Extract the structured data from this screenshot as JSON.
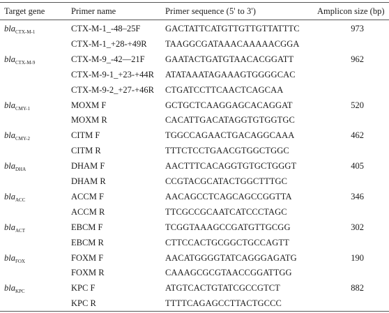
{
  "headers": {
    "target_gene": "Target gene",
    "primer_name": "Primer name",
    "primer_sequence": "Primer sequence (5' to 3')",
    "amplicon_size": "Amplicon size (bp)"
  },
  "rows": [
    {
      "gene_prefix": "bla",
      "gene_sub": "CTX-M-1",
      "primer_name": "CTX-M-1_-48–25F",
      "sequence": "GACTATTCATGTTGTTGTTATTTC",
      "amplicon": "973"
    },
    {
      "gene_prefix": "",
      "gene_sub": "",
      "primer_name": "CTX-M-1_+28-+49R",
      "sequence": "TAAGGCGATAAACAAAAACGGA",
      "amplicon": ""
    },
    {
      "gene_prefix": "bla",
      "gene_sub": "CTX-M-9",
      "primer_name": "CTX-M-9_-42—21F",
      "sequence": "GAATACTGATGTAACACGGATT",
      "amplicon": "962"
    },
    {
      "gene_prefix": "",
      "gene_sub": "",
      "primer_name": "CTX-M-9-1_+23-+44R",
      "sequence": "ATATAAATAGAAAGTGGGGCAC",
      "amplicon": ""
    },
    {
      "gene_prefix": "",
      "gene_sub": "",
      "primer_name": "CTX-M-9-2_+27-+46R",
      "sequence": "CTGATCCTTCAACTCAGCAA",
      "amplicon": ""
    },
    {
      "gene_prefix": "bla",
      "gene_sub": "CMY-1",
      "primer_name": "MOXM F",
      "sequence": "GCTGCTCAAGGAGCACAGGAT",
      "amplicon": "520"
    },
    {
      "gene_prefix": "",
      "gene_sub": "",
      "primer_name": "MOXM R",
      "sequence": "CACATTGACATAGGTGTGGTGC",
      "amplicon": ""
    },
    {
      "gene_prefix": "bla",
      "gene_sub": "CMY-2",
      "primer_name": "CITM F",
      "sequence": "TGGCCAGAACTGACAGGCAAA",
      "amplicon": "462"
    },
    {
      "gene_prefix": "",
      "gene_sub": "",
      "primer_name": "CITM R",
      "sequence": "TTTCTCCTGAACGTGGCTGGC",
      "amplicon": ""
    },
    {
      "gene_prefix": "bla",
      "gene_sub": "DHA",
      "primer_name": "DHAM F",
      "sequence": "AACTTTCACAGGTGTGCTGGGT",
      "amplicon": "405"
    },
    {
      "gene_prefix": "",
      "gene_sub": "",
      "primer_name": "DHAM R",
      "sequence": "CCGTACGCATACTGGCTTTGC",
      "amplicon": ""
    },
    {
      "gene_prefix": "bla",
      "gene_sub": "ACC",
      "primer_name": "ACCM F",
      "sequence": "AACAGCCTCAGCAGCCGGTTA",
      "amplicon": "346"
    },
    {
      "gene_prefix": "",
      "gene_sub": "",
      "primer_name": "ACCM R",
      "sequence": "TTCGCCGCAATCATCCCTAGC",
      "amplicon": ""
    },
    {
      "gene_prefix": "bla",
      "gene_sub": "ACT",
      "primer_name": "EBCM F",
      "sequence": "TCGGTAAAGCCGATGTTGCGG",
      "amplicon": "302"
    },
    {
      "gene_prefix": "",
      "gene_sub": "",
      "primer_name": "EBCM R",
      "sequence": "CTTCCACTGCGGCTGCCAGTT",
      "amplicon": ""
    },
    {
      "gene_prefix": "bla",
      "gene_sub": "FOX",
      "primer_name": "FOXM F",
      "sequence": "AACATGGGGTATCAGGGAGATG",
      "amplicon": "190"
    },
    {
      "gene_prefix": "",
      "gene_sub": "",
      "primer_name": "FOXM R",
      "sequence": "CAAAGCGCGTAACCGGATTGG",
      "amplicon": ""
    },
    {
      "gene_prefix": "bla",
      "gene_sub": "KPC",
      "primer_name": "KPC F",
      "sequence": "ATGTCACTGTATCGCCGTCT",
      "amplicon": "882"
    },
    {
      "gene_prefix": "",
      "gene_sub": "",
      "primer_name": "KPC R",
      "sequence": "TTTTCAGAGCCTTACTGCCC",
      "amplicon": ""
    }
  ]
}
